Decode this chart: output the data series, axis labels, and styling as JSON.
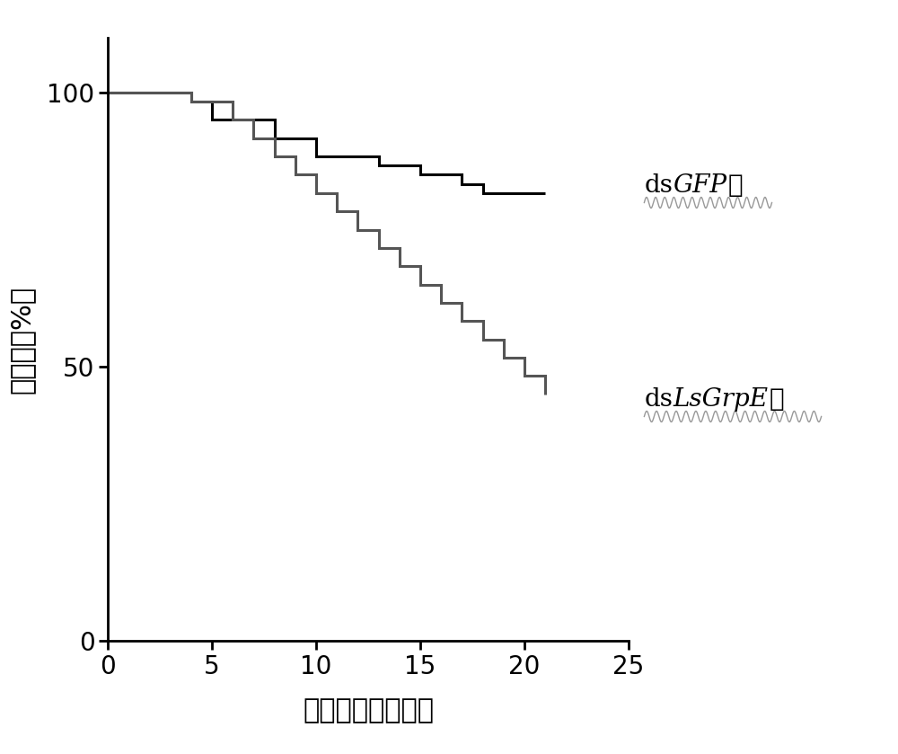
{
  "gfp_x": [
    0,
    4,
    4,
    5,
    5,
    8,
    8,
    10,
    10,
    13,
    13,
    15,
    15,
    17,
    17,
    18,
    18,
    21,
    21
  ],
  "gfp_y": [
    100,
    100,
    98.3,
    98.3,
    95,
    95,
    91.7,
    91.7,
    88.3,
    88.3,
    86.7,
    86.7,
    85,
    85,
    83.3,
    83.3,
    81.7,
    81.7,
    81.7
  ],
  "grpe_x": [
    0,
    4,
    4,
    6,
    6,
    7,
    7,
    8,
    8,
    9,
    9,
    10,
    10,
    11,
    11,
    12,
    12,
    13,
    13,
    14,
    14,
    15,
    15,
    16,
    16,
    17,
    17,
    18,
    18,
    19,
    19,
    20,
    20,
    21,
    21
  ],
  "grpe_y": [
    100,
    100,
    98.3,
    98.3,
    95,
    95,
    91.7,
    91.7,
    88.3,
    88.3,
    85,
    85,
    81.7,
    81.7,
    78.3,
    78.3,
    75,
    75,
    71.7,
    71.7,
    68.3,
    68.3,
    65,
    65,
    61.7,
    61.7,
    58.3,
    58.3,
    55,
    55,
    51.7,
    51.7,
    48.3,
    48.3,
    45
  ],
  "line_color_gfp": "#000000",
  "line_color_grpe": "#555555",
  "line_width": 2.2,
  "xlabel": "注射后时间（天）",
  "ylabel": "存活率（%）",
  "xlim": [
    0,
    25
  ],
  "ylim": [
    0,
    110
  ],
  "xticks": [
    0,
    5,
    10,
    15,
    20,
    25
  ],
  "yticks": [
    0,
    50,
    100
  ],
  "background_color": "#ffffff",
  "tick_fontsize": 20,
  "label_fontsize": 22,
  "annot_fontsize": 20
}
